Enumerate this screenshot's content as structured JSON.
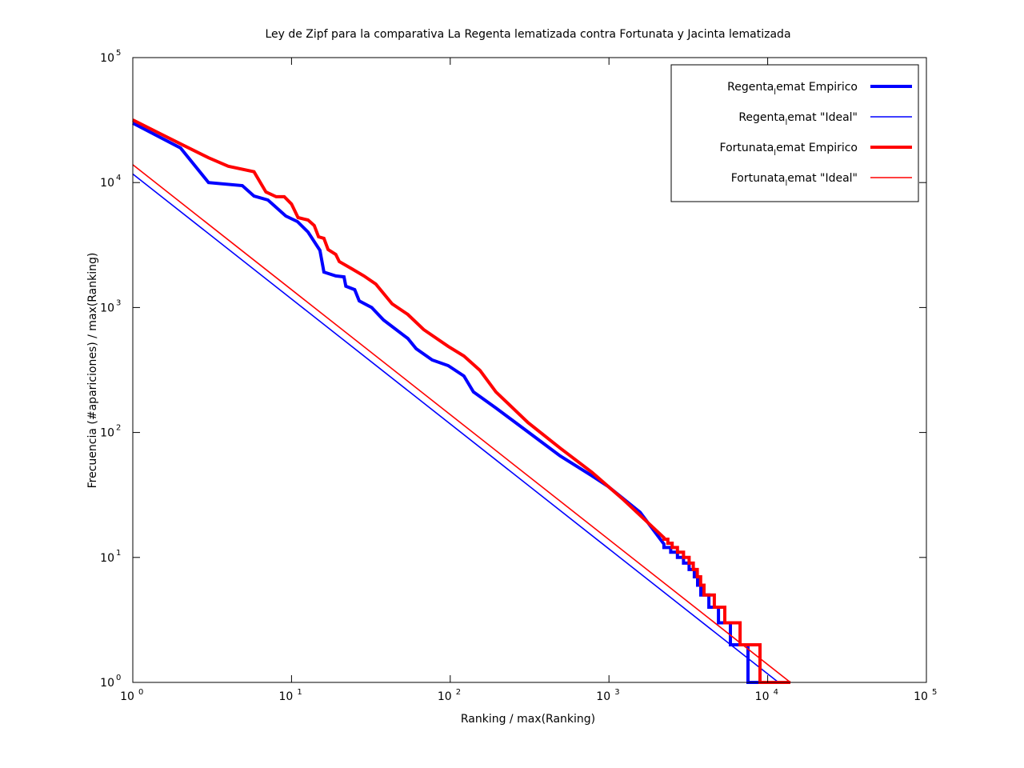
{
  "chart_data": {
    "type": "line",
    "title": "Ley de Zipf para la comparativa La Regenta lematizada contra Fortunata y Jacinta lematizada",
    "xlabel": "Ranking / max(Ranking)",
    "ylabel": "Frecuencia (#apariciones) / max(Ranking)",
    "xscale": "log",
    "yscale": "log",
    "xlim": [
      1,
      100000
    ],
    "ylim": [
      1,
      100000
    ],
    "grid": false,
    "legend_position": "top-right",
    "x_ticks": [
      {
        "base": "10",
        "exp": "0",
        "value": 1
      },
      {
        "base": "10",
        "exp": "1",
        "value": 10
      },
      {
        "base": "10",
        "exp": "2",
        "value": 100
      },
      {
        "base": "10",
        "exp": "3",
        "value": 1000
      },
      {
        "base": "10",
        "exp": "4",
        "value": 10000
      },
      {
        "base": "10",
        "exp": "5",
        "value": 100000
      }
    ],
    "y_ticks": [
      {
        "base": "10",
        "exp": "0",
        "value": 1
      },
      {
        "base": "10",
        "exp": "1",
        "value": 10
      },
      {
        "base": "10",
        "exp": "2",
        "value": 100
      },
      {
        "base": "10",
        "exp": "3",
        "value": 1000
      },
      {
        "base": "10",
        "exp": "4",
        "value": 10000
      },
      {
        "base": "10",
        "exp": "5",
        "value": 100000
      }
    ],
    "series": [
      {
        "name": "Regenta_lemat Empirico",
        "label_parts": [
          "Regenta",
          "l",
          "emat Empirico"
        ],
        "color": "#0000ff",
        "style": "thick",
        "points": [
          [
            1,
            29900
          ],
          [
            2,
            18900
          ],
          [
            3,
            10000
          ],
          [
            4.9,
            9450
          ],
          [
            5.8,
            7800
          ],
          [
            7.1,
            7250
          ],
          [
            9.2,
            5400
          ],
          [
            10.9,
            4870
          ],
          [
            12.7,
            4020
          ],
          [
            15.1,
            2870
          ],
          [
            16,
            1920
          ],
          [
            19,
            1790
          ],
          [
            21.4,
            1760
          ],
          [
            22,
            1480
          ],
          [
            25,
            1390
          ],
          [
            26.7,
            1130
          ],
          [
            32,
            1000
          ],
          [
            38,
            795
          ],
          [
            54,
            566
          ],
          [
            61,
            468
          ],
          [
            77,
            380
          ],
          [
            97,
            343
          ],
          [
            122,
            283
          ],
          [
            140,
            211
          ],
          [
            194,
            157
          ],
          [
            309,
            101
          ],
          [
            492,
            65
          ],
          [
            782,
            45
          ],
          [
            986,
            37
          ],
          [
            1570,
            23
          ],
          [
            2220,
            12.8
          ],
          [
            2220,
            12
          ],
          [
            2450,
            12
          ],
          [
            2450,
            11
          ],
          [
            2700,
            11
          ],
          [
            2700,
            10
          ],
          [
            2950,
            10
          ],
          [
            2950,
            9
          ],
          [
            3200,
            9
          ],
          [
            3200,
            8
          ],
          [
            3450,
            8
          ],
          [
            3450,
            7
          ],
          [
            3620,
            7
          ],
          [
            3620,
            6
          ],
          [
            3790,
            6
          ],
          [
            3790,
            5
          ],
          [
            4260,
            5
          ],
          [
            4260,
            4
          ],
          [
            4900,
            4
          ],
          [
            4900,
            3
          ],
          [
            5820,
            3
          ],
          [
            5820,
            2
          ],
          [
            7515,
            2
          ],
          [
            7515,
            1
          ],
          [
            11000,
            1
          ]
        ]
      },
      {
        "name": "Regenta_lemat \"Ideal\"",
        "label_parts": [
          "Regenta",
          "l",
          "emat \"Ideal\""
        ],
        "color": "#0000ff",
        "style": "thin",
        "points": [
          [
            1,
            11700
          ],
          [
            11700,
            1
          ]
        ]
      },
      {
        "name": "Fortunata_lemat Empirico",
        "label_parts": [
          "Fortunata",
          "l",
          "emat Empirico"
        ],
        "color": "#ff0000",
        "style": "thick",
        "points": [
          [
            1,
            31700
          ],
          [
            1.48,
            24700
          ],
          [
            2.1,
            19800
          ],
          [
            3,
            15800
          ],
          [
            4,
            13500
          ],
          [
            5.8,
            12200
          ],
          [
            6.9,
            8400
          ],
          [
            8,
            7700
          ],
          [
            9,
            7700
          ],
          [
            10,
            6730
          ],
          [
            11,
            5240
          ],
          [
            12.7,
            5020
          ],
          [
            13.9,
            4530
          ],
          [
            14.8,
            3680
          ],
          [
            16,
            3580
          ],
          [
            17,
            2910
          ],
          [
            19,
            2660
          ],
          [
            20,
            2330
          ],
          [
            24,
            2040
          ],
          [
            28.6,
            1790
          ],
          [
            34,
            1540
          ],
          [
            43,
            1070
          ],
          [
            54,
            881
          ],
          [
            68,
            666
          ],
          [
            97,
            489
          ],
          [
            122,
            409
          ],
          [
            154,
            314
          ],
          [
            194,
            211
          ],
          [
            309,
            120
          ],
          [
            492,
            75
          ],
          [
            782,
            48
          ],
          [
            1240,
            28.8
          ],
          [
            2220,
            14.4
          ],
          [
            2220,
            14
          ],
          [
            2350,
            14
          ],
          [
            2350,
            13
          ],
          [
            2500,
            13
          ],
          [
            2500,
            12
          ],
          [
            2700,
            12
          ],
          [
            2700,
            11
          ],
          [
            2950,
            11
          ],
          [
            2950,
            10
          ],
          [
            3200,
            10
          ],
          [
            3200,
            9
          ],
          [
            3400,
            9
          ],
          [
            3400,
            8
          ],
          [
            3600,
            8
          ],
          [
            3600,
            7
          ],
          [
            3780,
            7
          ],
          [
            3780,
            6
          ],
          [
            3970,
            6
          ],
          [
            3970,
            5
          ],
          [
            4610,
            5
          ],
          [
            4610,
            4
          ],
          [
            5370,
            4
          ],
          [
            5370,
            3
          ],
          [
            6700,
            3
          ],
          [
            6700,
            2
          ],
          [
            8950,
            2
          ],
          [
            8950,
            1
          ],
          [
            13900,
            1
          ]
        ]
      },
      {
        "name": "Fortunata_lemat \"Ideal\"",
        "label_parts": [
          "Fortunata",
          "l",
          "emat \"Ideal\""
        ],
        "color": "#ff0000",
        "style": "thin",
        "points": [
          [
            1,
            13900
          ],
          [
            13900,
            1
          ]
        ]
      }
    ]
  }
}
